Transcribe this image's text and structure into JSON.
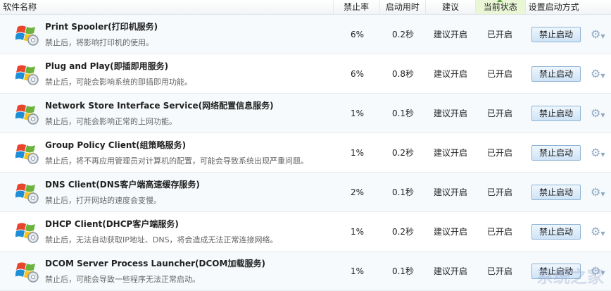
{
  "header": {
    "name": "软件名称",
    "rate": "禁止率",
    "time": "启动用时",
    "advice": "建议",
    "status": "当前状态",
    "action": "设置启动方式"
  },
  "rows": [
    {
      "title": "Print Spooler(打印机服务)",
      "desc": "禁止后，将影响打印机的使用。",
      "rate": "6%",
      "time": "0.2秒",
      "advice": "建议开启",
      "status": "已开启",
      "button": "禁止启动"
    },
    {
      "title": "Plug and Play(即插即用服务)",
      "desc": "禁止后，可能会影响系统的即插即用功能。",
      "rate": "6%",
      "time": "0.8秒",
      "advice": "建议开启",
      "status": "已开启",
      "button": "禁止启动"
    },
    {
      "title": "Network Store Interface Service(网络配置信息服务)",
      "desc": "禁止后，可能会影响正常的上网功能。",
      "rate": "1%",
      "time": "0.1秒",
      "advice": "建议开启",
      "status": "已开启",
      "button": "禁止启动"
    },
    {
      "title": "Group Policy Client(组策略服务)",
      "desc": "禁止后，将不再应用管理员对计算机的配置，可能会导致系统出现严重问题。",
      "rate": "1%",
      "time": "0.2秒",
      "advice": "建议开启",
      "status": "已开启",
      "button": "禁止启动"
    },
    {
      "title": "DNS Client(DNS客户端高速缓存服务)",
      "desc": "禁止后，打开网站的速度会变慢。",
      "rate": "2%",
      "time": "0.1秒",
      "advice": "建议开启",
      "status": "已开启",
      "button": "禁止启动"
    },
    {
      "title": "DHCP Client(DHCP客户端服务)",
      "desc": "禁止后，无法自动获取IP地址、DNS，将会造成无法正常连接网络。",
      "rate": "1%",
      "time": "0.2秒",
      "advice": "建议开启",
      "status": "已开启",
      "button": "禁止启动"
    },
    {
      "title": "DCOM Server Process Launcher(DCOM加载服务)",
      "desc": "禁止后，可能会导致一些程序无法正常启动。",
      "rate": "1%",
      "time": "0.1秒",
      "advice": "建议开启",
      "status": "已开启",
      "button": "禁止启动"
    }
  ],
  "watermark": "系统之家",
  "icons": {
    "service": "windows-gear-icon",
    "settings": "gear-dropdown-icon"
  }
}
